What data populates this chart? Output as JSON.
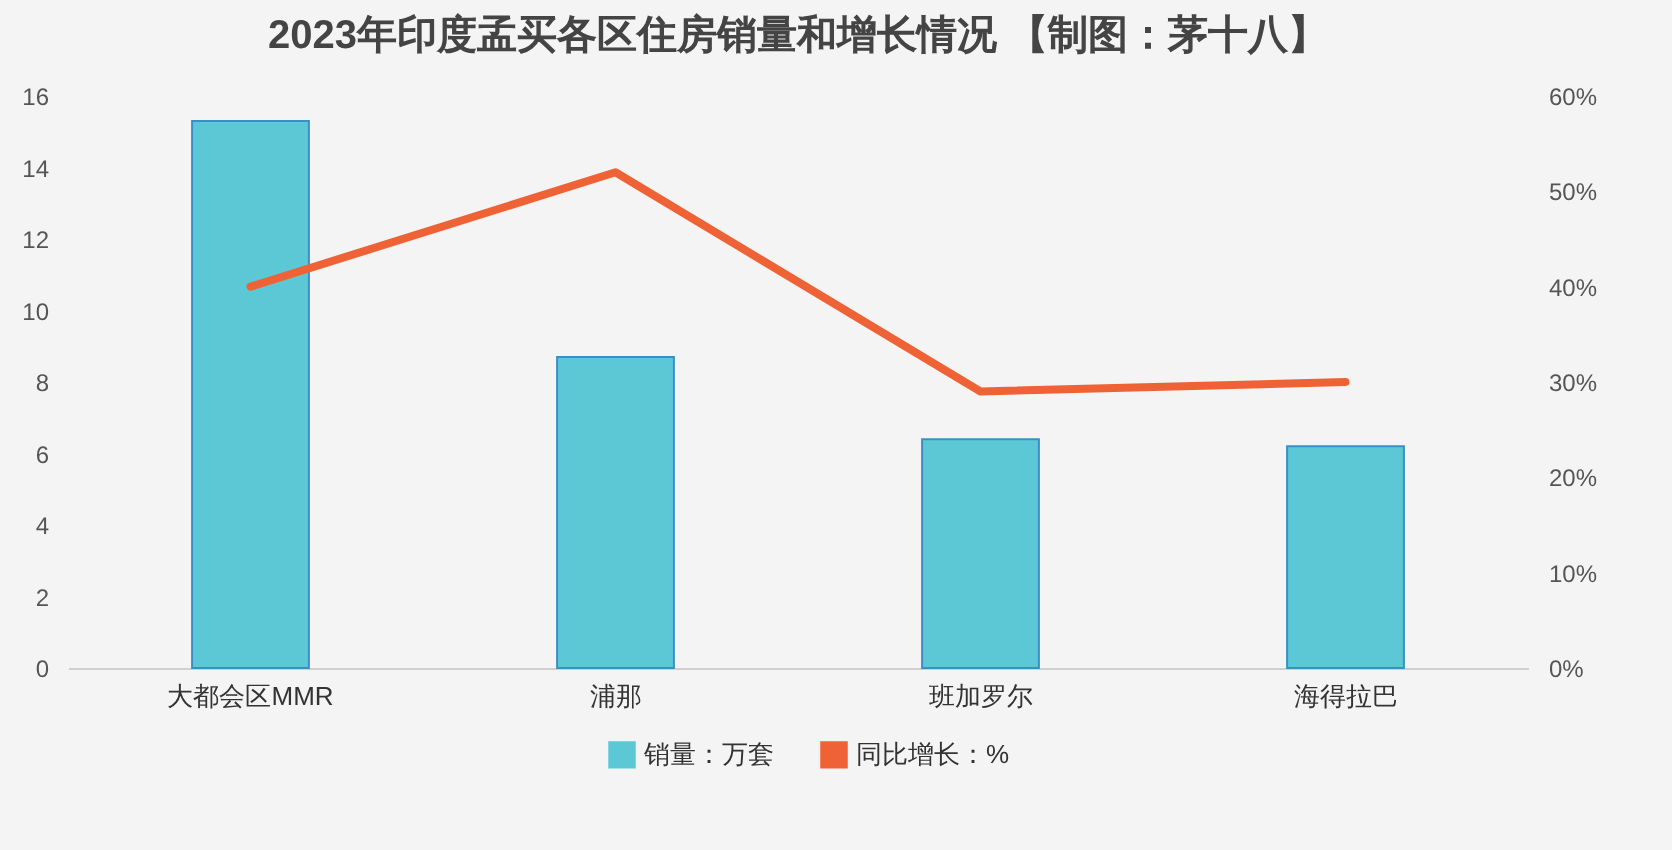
{
  "chart_data": {
    "type": "bar",
    "title": "2023年印度孟买各区住房销量和增长情况 【制图：茅十八】",
    "categories": [
      "大都会区MMR",
      "浦那",
      "班加罗尔",
      "海得拉巴"
    ],
    "series": [
      {
        "name": "销量：万套",
        "color": "#5cc8d6",
        "values": [
          15.3,
          8.7,
          6.4,
          6.2
        ]
      },
      {
        "name": "同比增长：%",
        "type": "line",
        "axis": "y2",
        "color": "#ee6236",
        "values": [
          40,
          52,
          29,
          30
        ]
      }
    ],
    "ylim": [
      0,
      16
    ],
    "yticks": [
      0,
      2,
      4,
      6,
      8,
      10,
      12,
      14,
      16
    ],
    "y2lim": [
      0,
      60
    ],
    "y2ticks": [
      {
        "value": 0,
        "label": "0%"
      },
      {
        "value": 10,
        "label": "10%"
      },
      {
        "value": 20,
        "label": "20%"
      },
      {
        "value": 30,
        "label": "30%"
      },
      {
        "value": 40,
        "label": "40%"
      },
      {
        "value": 50,
        "label": "50%"
      },
      {
        "value": 60,
        "label": "60%"
      }
    ],
    "grid": false,
    "legend": "bottom"
  }
}
